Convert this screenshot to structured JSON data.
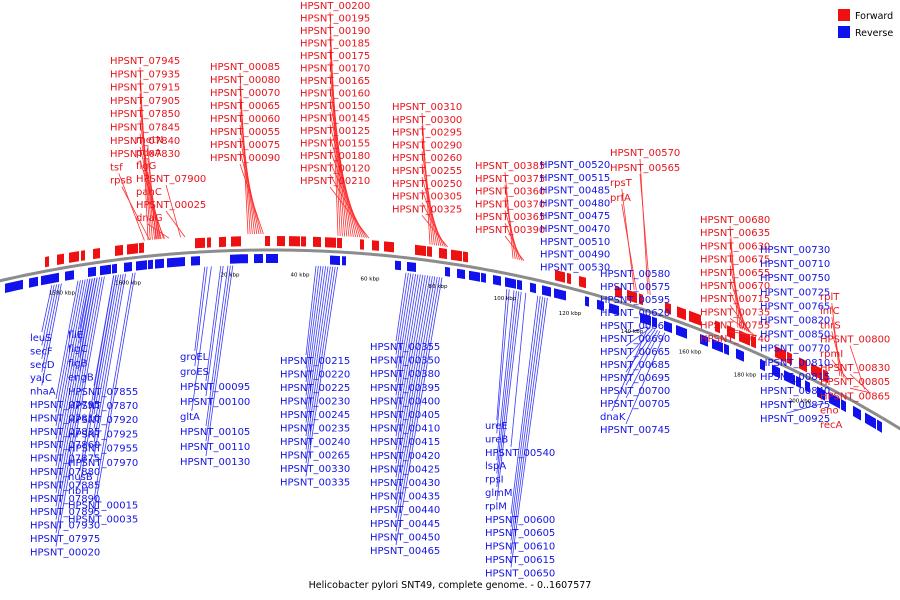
{
  "caption": "Helicobacter pylori SNT49, complete genome. - 0..1607577",
  "legend": {
    "forward_label": "Forward",
    "reverse_label": "Reverse",
    "forward_color": "#ee1111",
    "reverse_color": "#1111ee"
  },
  "colors": {
    "backbone": "#8c8c8c",
    "forward_line": "#ff3030",
    "reverse_line": "#3a3aff"
  },
  "ticks": [
    "1580 kbp",
    "1600 kbp",
    "20 kbp",
    "40 kbp",
    "60 kbp",
    "80 kbp",
    "100 kbp",
    "120 kbp",
    "140 kbp",
    "160 kbp",
    "180 kbp",
    "200 kbp"
  ],
  "forward_labels": [
    "HPSNT_07945",
    "HPSNT_07935",
    "HPSNT_07915",
    "HPSNT_07905",
    "HPSNT_07850",
    "HPSNT_07845",
    "HPSNT_07840",
    "HPSNT_07830",
    "tsf",
    "rpsB",
    "metN",
    "pdxA",
    "flgG",
    "HPSNT_07900",
    "panC",
    "HPSNT_00025",
    "dnaG",
    "HPSNT_00085",
    "HPSNT_00080",
    "HPSNT_00070",
    "HPSNT_00065",
    "HPSNT_00060",
    "HPSNT_00055",
    "HPSNT_00075",
    "HPSNT_00090",
    "HPSNT_00200",
    "HPSNT_00195",
    "HPSNT_00190",
    "HPSNT_00185",
    "HPSNT_00175",
    "HPSNT_00170",
    "HPSNT_00165",
    "HPSNT_00160",
    "HPSNT_00150",
    "HPSNT_00145",
    "HPSNT_00125",
    "HPSNT_00155",
    "HPSNT_00180",
    "HPSNT_00120",
    "HPSNT_00210",
    "HPSNT_00310",
    "HPSNT_00300",
    "HPSNT_00295",
    "HPSNT_00290",
    "HPSNT_00260",
    "HPSNT_00255",
    "HPSNT_00250",
    "HPSNT_00305",
    "HPSNT_00325",
    "HPSNT_00385",
    "HPSNT_00375",
    "HPSNT_00360",
    "HPSNT_00370",
    "HPSNT_00365",
    "HPSNT_00390",
    "HPSNT_00570",
    "HPSNT_00565",
    "rpsT",
    "prfA",
    "HPSNT_00680",
    "HPSNT_00635",
    "HPSNT_00630",
    "HPSNT_00675",
    "HPSNT_00655",
    "HPSNT_00670",
    "HPSNT_00715",
    "HPSNT_00735",
    "HPSNT_00755",
    "HPSNT_00740",
    "rplT",
    "infC",
    "thrS",
    "HPSNT_00800",
    "rpmI",
    "HPSNT_00830",
    "HPSNT_00805",
    "HPSNT_00865",
    "eno",
    "recA"
  ],
  "reverse_labels": [
    "leuS",
    "secF",
    "secD",
    "yajC",
    "nhaA",
    "HPSNT_07795",
    "HPSNT_07810",
    "HPSNT_07835",
    "HPSNT_07860",
    "HPSNT_07875",
    "HPSNT_07880",
    "HPSNT_07885",
    "HPSNT_07890",
    "HPSNT_07895",
    "HPSNT_07930",
    "HPSNT_07975",
    "HPSNT_00020",
    "fliE",
    "flgC",
    "flgB",
    "engB",
    "HPSNT_07855",
    "HPSNT_07870",
    "HPSNT_07920",
    "HPSNT_07925",
    "HPSNT_07955",
    "HPSNT_07970",
    "nusB",
    "ribH",
    "HPSNT_00015",
    "HPSNT_00035",
    "groEL",
    "groES",
    "HPSNT_00095",
    "HPSNT_00100",
    "gltA",
    "HPSNT_00105",
    "HPSNT_00110",
    "HPSNT_00130",
    "HPSNT_00215",
    "HPSNT_00220",
    "HPSNT_00225",
    "HPSNT_00230",
    "HPSNT_00245",
    "HPSNT_00235",
    "HPSNT_00240",
    "HPSNT_00265",
    "HPSNT_00330",
    "HPSNT_00335",
    "HPSNT_00355",
    "HPSNT_00350",
    "HPSNT_00380",
    "HPSNT_00395",
    "HPSNT_00400",
    "HPSNT_00405",
    "HPSNT_00410",
    "HPSNT_00415",
    "HPSNT_00420",
    "HPSNT_00425",
    "HPSNT_00430",
    "HPSNT_00435",
    "HPSNT_00440",
    "HPSNT_00445",
    "HPSNT_00450",
    "HPSNT_00465",
    "HPSNT_00520",
    "HPSNT_00515",
    "HPSNT_00485",
    "HPSNT_00480",
    "HPSNT_00475",
    "HPSNT_00470",
    "HPSNT_00510",
    "HPSNT_00490",
    "HPSNT_00530",
    "ureE",
    "ureB",
    "HPSNT_00540",
    "lspA",
    "rpsI",
    "glmM",
    "rplM",
    "HPSNT_00600",
    "HPSNT_00605",
    "HPSNT_00610",
    "HPSNT_00615",
    "HPSNT_00650",
    "HPSNT_00580",
    "HPSNT_00575",
    "HPSNT_00595",
    "HPSNT_00620",
    "HPSNT_00660",
    "HPSNT_00690",
    "HPSNT_00665",
    "HPSNT_00685",
    "HPSNT_00695",
    "HPSNT_00700",
    "HPSNT_00705",
    "dnaK",
    "HPSNT_00745",
    "HPSNT_00730",
    "HPSNT_00710",
    "HPSNT_00750",
    "HPSNT_00725",
    "HPSNT_00765",
    "HPSNT_00820",
    "HPSNT_00850",
    "HPSNT_00770",
    "HPSNT_00810",
    "HPSNT_00815",
    "HPSNT_00840",
    "HPSNT_00875",
    "HPSNT_00925"
  ]
}
